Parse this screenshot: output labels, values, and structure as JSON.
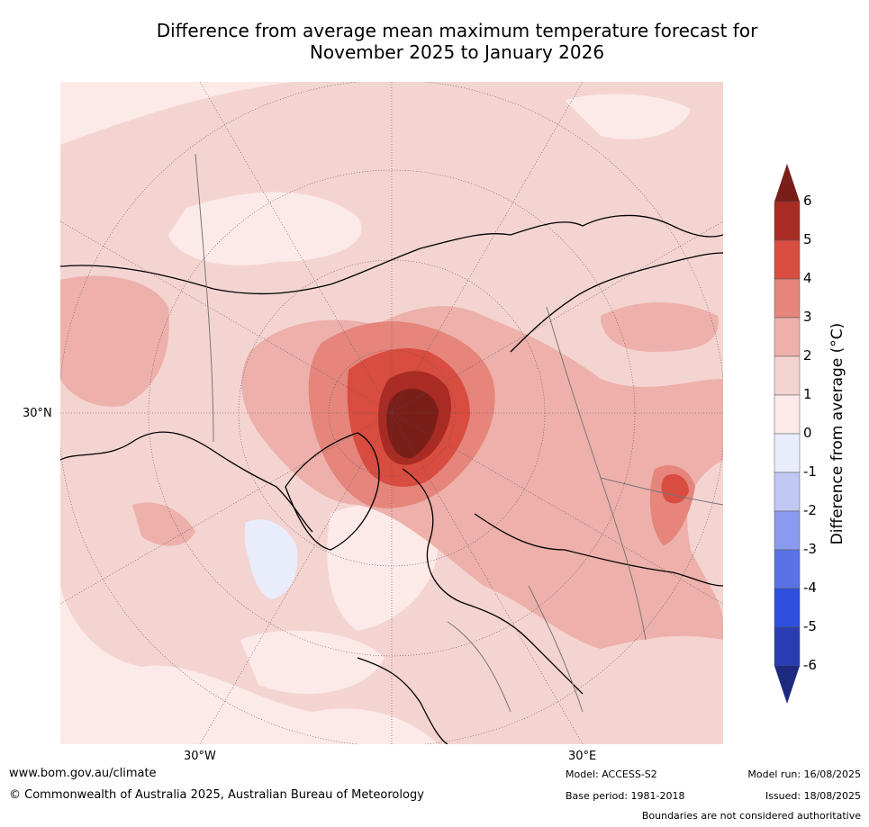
{
  "title_line1": "Difference from average mean maximum temperature forecast for",
  "title_line2": "November 2025 to January 2026",
  "map": {
    "projection": "north-polar-stereographic",
    "lat_label_left": "30°N",
    "lon_label_1": "30°W",
    "lon_label_2": "30°E"
  },
  "colorbar": {
    "label": "Difference from average (°C)",
    "ticks": [
      "6",
      "5",
      "4",
      "3",
      "2",
      "1",
      "0",
      "-1",
      "-2",
      "-3",
      "-4",
      "-5",
      "-6"
    ],
    "colors": {
      "over": "#7a1e1a",
      "5_6": "#a92b24",
      "4_5": "#d94c40",
      "3_4": "#e5857c",
      "2_3": "#eeb0aa",
      "1_2": "#f4d4d1",
      "0_1": "#fbeae8",
      "m1_0": "#e9ecfb",
      "m2_m1": "#c0c8f3",
      "m3_m2": "#8a9af0",
      "m4_m3": "#5a72e6",
      "m5_m4": "#2f4fe0",
      "m6_m5": "#2a3cb3",
      "under": "#1e2a80"
    }
  },
  "footer": {
    "website": "www.bom.gov.au/climate",
    "copyright": "© Commonwealth of Australia 2025, Australian Bureau of Meteorology",
    "model": "Model: ACCESS-S2",
    "base_period": "Base period: 1981-2018",
    "model_run": "Model run: 16/08/2025",
    "issued": "Issued: 18/08/2025",
    "disclaimer": "Boundaries are not considered authoritative"
  }
}
